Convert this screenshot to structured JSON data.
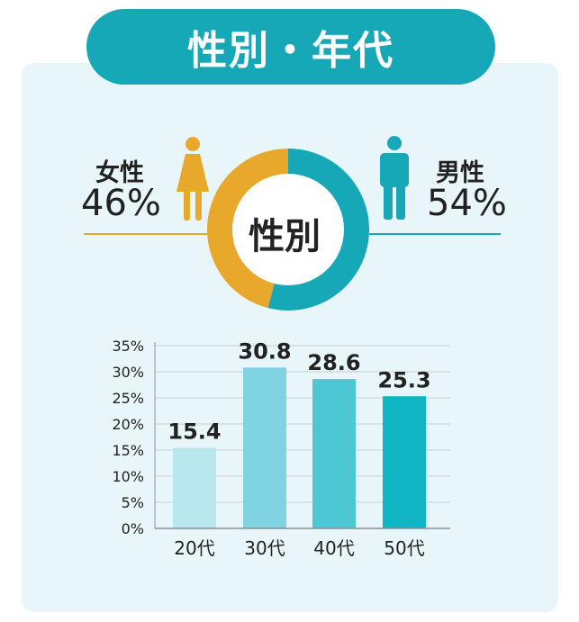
{
  "header": {
    "title": "性別・年代"
  },
  "gender": {
    "center_label": "性別",
    "female": {
      "label": "女性",
      "percent_text": "46%",
      "value": 46,
      "color": "#e8a82b"
    },
    "male": {
      "label": "男性",
      "percent_text": "54%",
      "value": 54,
      "color": "#17a8b8"
    }
  },
  "chart_data": [
    {
      "type": "pie",
      "categories": [
        "女性",
        "男性"
      ],
      "values": [
        46,
        54
      ],
      "center_label": "性別",
      "colors": [
        "#e8a82b",
        "#17a8b8"
      ]
    },
    {
      "type": "bar",
      "categories": [
        "20代",
        "30代",
        "40代",
        "50代"
      ],
      "values": [
        15.4,
        30.8,
        28.6,
        25.3
      ],
      "value_labels": [
        "15.4",
        "30.8",
        "28.6",
        "25.3"
      ],
      "colors": [
        "#b9e7ee",
        "#80d4e2",
        "#4cc7d3",
        "#0fb5c2"
      ],
      "ylim": [
        0,
        35
      ],
      "yticks": [
        "0%",
        "5%",
        "10%",
        "15%",
        "20%",
        "25%",
        "30%",
        "35%"
      ],
      "grid": true
    }
  ]
}
